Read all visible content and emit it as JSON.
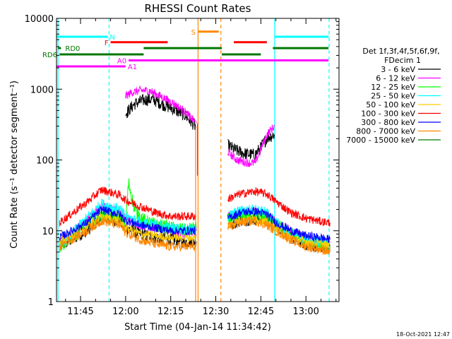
{
  "chart_data": {
    "type": "line",
    "title": "RHESSI Count Rates",
    "xlabel": "Start Time (04-Jan-14 11:34:42)",
    "ylabel": "Count Rate (s⁻¹ detector segment⁻¹)",
    "yscale": "log",
    "ylim": [
      1,
      10000
    ],
    "xlim_minutes": [
      -23,
      71
    ],
    "x_ticks": [
      {
        "label": "11:45",
        "m": -15
      },
      {
        "label": "12:00",
        "m": 0
      },
      {
        "label": "12:15",
        "m": 15
      },
      {
        "label": "12:30",
        "m": 30
      },
      {
        "label": "12:45",
        "m": 45
      },
      {
        "label": "13:00",
        "m": 60
      }
    ],
    "y_ticks": [
      {
        "label": "1",
        "v": 1
      },
      {
        "label": "10",
        "v": 10
      },
      {
        "label": "100",
        "v": 100
      },
      {
        "label": "1000",
        "v": 1000
      },
      {
        "label": "10000",
        "v": 10000
      }
    ],
    "timestamp": "18-Oct-2021 12:47",
    "legend": {
      "header1": "Det 1f,3f,4f,5f,6f,9f,",
      "header2": "FDecim 1",
      "entries": [
        {
          "label": "3 - 6 keV",
          "color": "#000000"
        },
        {
          "label": "6 - 12 keV",
          "color": "#ff00ff"
        },
        {
          "label": "12 - 25 keV",
          "color": "#00ff00"
        },
        {
          "label": "25 - 50 keV",
          "color": "#00ffff"
        },
        {
          "label": "50 - 100 keV",
          "color": "#ffcc00"
        },
        {
          "label": "100 - 300 keV",
          "color": "#ff0000"
        },
        {
          "label": "300 - 800 keV",
          "color": "#0000ff"
        },
        {
          "label": "800 - 7000 keV",
          "color": "#ff8800"
        },
        {
          "label": "7000 - 15000 keV",
          "color": "#007700"
        }
      ]
    },
    "series": [
      {
        "color": "#000000",
        "noise": 0.09,
        "segments": [
          {
            "x": [
              -22,
              -13,
              -8,
              -2,
              0,
              5,
              10,
              15,
              20,
              23.5
            ],
            "y": [
              6,
              10,
              15,
              14,
              11,
              9,
              8,
              7.5,
              7,
              7
            ]
          },
          {
            "x": [
              0,
              3,
              6,
              9,
              12,
              16,
              20,
              23.5
            ],
            "y": [
              450,
              620,
              700,
              720,
              620,
              520,
              420,
              290
            ]
          },
          {
            "x": [
              34,
              37,
              40,
              43,
              45,
              47,
              49.5
            ],
            "y": [
              160,
              135,
              122,
              118,
              150,
              205,
              230
            ]
          },
          {
            "x": [
              34,
              38,
              43,
              47,
              50,
              55,
              60,
              65,
              68
            ],
            "y": [
              12,
              14,
              15,
              14,
              12,
              8,
              6.5,
              6,
              5.5
            ]
          }
        ]
      },
      {
        "color": "#ff00ff",
        "noise": 0.06,
        "segments": [
          {
            "x": [
              -22,
              -13,
              -8,
              -2,
              0,
              5,
              10,
              15,
              20,
              23.5
            ],
            "y": [
              7,
              14,
              22,
              19,
              15,
              12,
              11,
              10,
              9,
              9
            ]
          },
          {
            "x": [
              0,
              2,
              5,
              8,
              11,
              16,
              20,
              23.5
            ],
            "y": [
              800,
              900,
              960,
              950,
              820,
              630,
              470,
              330
            ]
          },
          {
            "x": [
              34,
              37,
              40,
              43,
              45,
              47,
              49.5
            ],
            "y": [
              130,
              100,
              92,
              90,
              140,
              230,
              300
            ]
          },
          {
            "x": [
              34,
              38,
              43,
              47,
              50,
              55,
              60,
              65,
              68
            ],
            "y": [
              16,
              18,
              19,
              17,
              14,
              10,
              8,
              7.5,
              7
            ]
          }
        ]
      },
      {
        "color": "#00ff00",
        "noise": 0.1,
        "segments": [
          {
            "x": [
              -22,
              -13,
              -8,
              -2,
              0,
              1,
              3,
              6,
              10,
              15,
              20,
              23.5
            ],
            "y": [
              6,
              12,
              17,
              15,
              13,
              48,
              20,
              14,
              12,
              11,
              10,
              11
            ]
          },
          {
            "x": [
              34,
              38,
              43,
              47,
              50,
              55,
              60,
              65,
              68
            ],
            "y": [
              14,
              16,
              17,
              15,
              12,
              9,
              7,
              6.5,
              6
            ]
          }
        ]
      },
      {
        "color": "#00ffff",
        "noise": 0.08,
        "segments": [
          {
            "x": [
              -22,
              -13,
              -8,
              -2,
              0,
              5,
              10,
              15,
              20,
              23.5
            ],
            "y": [
              6,
              15,
              24,
              20,
              16,
              13,
              12,
              11,
              10.5,
              10
            ]
          },
          {
            "x": [
              34,
              38,
              43,
              47,
              50,
              55,
              60,
              65,
              68
            ],
            "y": [
              16,
              19,
              20,
              18,
              13,
              9,
              7.5,
              7,
              6.5
            ]
          }
        ]
      },
      {
        "color": "#ffcc00",
        "noise": 0.06,
        "segments": [
          {
            "x": [
              -22,
              -13,
              -8,
              -2,
              0,
              5,
              10,
              15,
              20,
              23.5
            ],
            "y": [
              7,
              11,
              16,
              14,
              11,
              9,
              8.5,
              8,
              8,
              8
            ]
          },
          {
            "x": [
              34,
              38,
              43,
              47,
              50,
              55,
              60,
              65,
              68
            ],
            "y": [
              12,
              14,
              15,
              13,
              11,
              8,
              7,
              6.5,
              6
            ]
          }
        ]
      },
      {
        "color": "#ff0000",
        "noise": 0.06,
        "segments": [
          {
            "x": [
              -22,
              -13,
              -8,
              -2,
              0,
              5,
              10,
              15,
              20,
              23.5
            ],
            "y": [
              13,
              25,
              38,
              32,
              27,
              22,
              18,
              16,
              16,
              16
            ]
          },
          {
            "x": [
              34,
              38,
              43,
              47,
              50,
              55,
              60,
              65,
              68
            ],
            "y": [
              28,
              33,
              36,
              33,
              26,
              18,
              15,
              13.5,
              13
            ]
          }
        ]
      },
      {
        "color": "#0000ff",
        "noise": 0.06,
        "segments": [
          {
            "x": [
              -22,
              -13,
              -8,
              -2,
              0,
              5,
              10,
              15,
              20,
              23.5
            ],
            "y": [
              8,
              13,
              20,
              17,
              14,
              12,
              11,
              10,
              10,
              10
            ]
          },
          {
            "x": [
              34,
              38,
              43,
              47,
              50,
              55,
              60,
              65,
              68
            ],
            "y": [
              15,
              18,
              19,
              17,
              13,
              10,
              8.5,
              8,
              7.5
            ]
          }
        ]
      },
      {
        "color": "#ff8800",
        "noise": 0.07,
        "segments": [
          {
            "x": [
              -22,
              -13,
              -8,
              -2,
              0,
              5,
              10,
              15,
              20,
              23.5
            ],
            "y": [
              6,
              10,
              14,
              12,
              9.5,
              7.5,
              6.5,
              6,
              6,
              6
            ]
          },
          {
            "x": [
              34,
              38,
              43,
              47,
              50,
              55,
              60,
              65,
              68
            ],
            "y": [
              11,
              13,
              14,
              12,
              10,
              7.5,
              6,
              5.5,
              5
            ]
          }
        ]
      }
    ],
    "flag_bars": [
      {
        "label": "N",
        "color": "#00ffff",
        "x0": -23,
        "x1": -6,
        "y": 5500
      },
      {
        "label": "",
        "color": "#00ffff",
        "x0": 49.5,
        "x1": 67.5,
        "y": 5500
      },
      {
        "label": "S",
        "color": "#ff8800",
        "x0": 24,
        "x1": 31,
        "y": 6500
      },
      {
        "label": "F",
        "color": "#ff0000",
        "x0": -5,
        "x1": 14,
        "y": 4600
      },
      {
        "label": "",
        "color": "#ff0000",
        "x0": 36,
        "x1": 47,
        "y": 4600
      },
      {
        "label": "RD0",
        "color": "#007700",
        "x0": -22.5,
        "x1": -21.5,
        "y": 3800
      },
      {
        "label": "",
        "color": "#007700",
        "x0": 6,
        "x1": 32,
        "y": 3800
      },
      {
        "label": "",
        "color": "#007700",
        "x0": 49,
        "x1": 67.5,
        "y": 3800
      },
      {
        "label": "RD6",
        "color": "#007700",
        "x0": -22,
        "x1": 6,
        "y": 3100
      },
      {
        "label": "",
        "color": "#007700",
        "x0": 32,
        "x1": 45,
        "y": 3100
      },
      {
        "label": "A0",
        "color": "#ff00ff",
        "x0": 1,
        "x1": 67.5,
        "y": 2550
      },
      {
        "label": "A1",
        "color": "#ff00ff",
        "x0": -23,
        "x1": 0,
        "y": 2100
      }
    ],
    "vlines": [
      {
        "m": -22.5,
        "color": "#00ffff",
        "dashed": false
      },
      {
        "m": -5.5,
        "color": "#00ffff",
        "dashed": true
      },
      {
        "m": 24.1,
        "color": "#ff8800",
        "dashed": false
      },
      {
        "m": 31.7,
        "color": "#ff8800",
        "dashed": true
      },
      {
        "m": 49.6,
        "color": "#00ffff",
        "dashed": false
      },
      {
        "m": 67.7,
        "color": "#00ffff",
        "dashed": true
      }
    ],
    "spikes": [
      {
        "m": 23.3,
        "color": "#ff8800",
        "y0": 1,
        "y1": 300
      },
      {
        "m": 23.9,
        "color": "#ff00ff",
        "y0": 60,
        "y1": 330
      }
    ]
  }
}
